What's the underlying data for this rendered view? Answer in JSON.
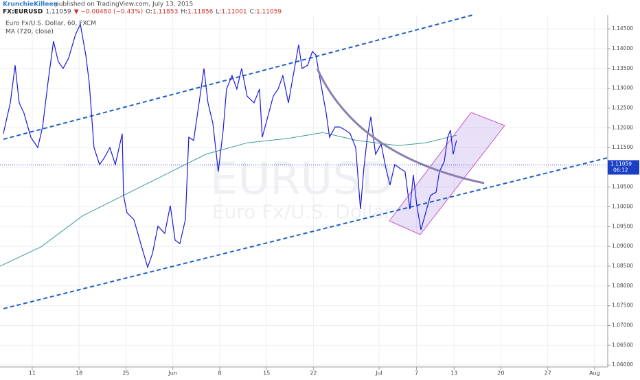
{
  "header": {
    "author": "KrunchieKilleen",
    "published": "published on TradingView.com, July 13, 2015",
    "symbol": "FX:EURUSD",
    "price": "1.11059",
    "change": "▼ −0.00480 (−0.43%)",
    "ohlc": [
      {
        "key": "O:",
        "val": "1.11853"
      },
      {
        "key": "H:",
        "val": "1.11856"
      },
      {
        "key": "L:",
        "val": "1.11001"
      },
      {
        "key": "C:",
        "val": "1.11059"
      }
    ]
  },
  "chart_data": {
    "type": "line",
    "watermark": "EURUSD",
    "watermark_sub": "Euro Fx/U.S. Dollar",
    "series": [
      {
        "name": "Euro Fx/U.S. Dollar, 60, FXCM",
        "color": "#1a1adb",
        "x": [
          -3.08,
          -2.34,
          -1.83,
          -1.39,
          -0.88,
          -0.15,
          0.59,
          1.1,
          1.68,
          2.27,
          2.78,
          3.3,
          3.88,
          4.62,
          5.13,
          5.71,
          6.08,
          6.59,
          7.18,
          7.69,
          8.28,
          8.86,
          9.6,
          9.74,
          10.11,
          10.84,
          11.58,
          12.31,
          12.82,
          13.41,
          14.14,
          14.73,
          15.24,
          15.75,
          16.34,
          16.7,
          17.22,
          17.8,
          18.32,
          18.75,
          19.27,
          19.85,
          20.37,
          20.73,
          21.32,
          21.83,
          22.34,
          22.93,
          23.66,
          24.25,
          24.54,
          25.13,
          25.71,
          26.23,
          26.74,
          27.33,
          27.91,
          28.42,
          28.79,
          29.38,
          29.89,
          30.26,
          30.77,
          31.36,
          31.72,
          32.31,
          32.82,
          33.41,
          33.92,
          34.51,
          35.02,
          35.38,
          35.75,
          36.12,
          36.63,
          37.22,
          37.73,
          38.17,
          38.68,
          39.19,
          39.78,
          40.29,
          40.66,
          41.03,
          41.47,
          41.98,
          42.49,
          43.08,
          43.44,
          43.96,
          44.32,
          44.62,
          44.91,
          45.27
        ],
        "values": [
          1.1185,
          1.1263,
          1.1358,
          1.1263,
          1.1237,
          1.1176,
          1.115,
          1.1202,
          1.1315,
          1.1419,
          1.1367,
          1.135,
          1.1376,
          1.1436,
          1.1462,
          1.1384,
          1.1315,
          1.115,
          1.1107,
          1.1124,
          1.115,
          1.1107,
          1.1185,
          1.1029,
          1.0985,
          1.0968,
          1.0907,
          1.0847,
          1.0881,
          1.0951,
          1.0933,
          1.1003,
          1.0916,
          1.0907,
          1.0968,
          1.1176,
          1.1168,
          1.1263,
          1.135,
          1.1263,
          1.1211,
          1.1089,
          1.1194,
          1.1298,
          1.1332,
          1.1298,
          1.135,
          1.128,
          1.1263,
          1.1298,
          1.1176,
          1.1228,
          1.128,
          1.1298,
          1.1332,
          1.1263,
          1.1341,
          1.141,
          1.135,
          1.1358,
          1.1393,
          1.1384,
          1.1315,
          1.1237,
          1.1176,
          1.1202,
          1.1202,
          1.1194,
          1.1185,
          1.115,
          1.0994,
          1.1098,
          1.1176,
          1.1228,
          1.1133,
          1.1159,
          1.1098,
          1.1055,
          1.1107,
          1.1098,
          1.1089,
          1.0994,
          1.1081,
          1.1003,
          1.0942,
          1.0985,
          1.1029,
          1.1037,
          1.1089,
          1.1115,
          1.1176,
          1.1194,
          1.1133,
          1.1168
        ]
      },
      {
        "name": "MA (720, close)",
        "color": "#3c9a9a",
        "x": [
          -3.44,
          0.95,
          5.35,
          9.74,
          14.14,
          18.53,
          22.93,
          27.33,
          30.99,
          34.65,
          39.05,
          41.98,
          45.27
        ],
        "values": [
          1.085,
          1.0899,
          1.0977,
          1.1029,
          1.1081,
          1.1133,
          1.1162,
          1.1173,
          1.1188,
          1.1168,
          1.1155,
          1.1162,
          1.1181
        ]
      }
    ],
    "last_price": 1.11059,
    "countdown": "06:12",
    "xlim": [
      -3.44,
      61.4
    ],
    "xticks": [
      {
        "value": 0,
        "label": "11"
      },
      {
        "value": 5,
        "label": "18"
      },
      {
        "value": 10,
        "label": "25"
      },
      {
        "value": 15,
        "label": "Jun"
      },
      {
        "value": 20,
        "label": "8"
      },
      {
        "value": 25,
        "label": "15"
      },
      {
        "value": 30,
        "label": "22"
      },
      {
        "value": 37,
        "label": "Jul"
      },
      {
        "value": 41,
        "label": "7"
      },
      {
        "value": 45,
        "label": "13"
      },
      {
        "value": 50,
        "label": "20"
      },
      {
        "value": 55,
        "label": "27"
      },
      {
        "value": 60,
        "label": "Aug"
      }
    ],
    "ylim": [
      1.0595,
      1.1485
    ],
    "yticks": [
      {
        "value": 1.06,
        "label": "1.06000"
      },
      {
        "value": 1.065,
        "label": "1.06500"
      },
      {
        "value": 1.07,
        "label": "1.07000"
      },
      {
        "value": 1.075,
        "label": "1.07500"
      },
      {
        "value": 1.08,
        "label": "1.08000"
      },
      {
        "value": 1.085,
        "label": "1.08500"
      },
      {
        "value": 1.09,
        "label": "1.09000"
      },
      {
        "value": 1.095,
        "label": "1.09500"
      },
      {
        "value": 1.1,
        "label": "1.10000"
      },
      {
        "value": 1.105,
        "label": "1.10500"
      },
      {
        "value": 1.11,
        "label": "1.11000"
      },
      {
        "value": 1.115,
        "label": "1.11500"
      },
      {
        "value": 1.12,
        "label": "1.12000"
      },
      {
        "value": 1.125,
        "label": "1.12500"
      },
      {
        "value": 1.13,
        "label": "1.13000"
      },
      {
        "value": 1.135,
        "label": "1.13500"
      },
      {
        "value": 1.14,
        "label": "1.14000"
      },
      {
        "value": 1.145,
        "label": "1.14500"
      }
    ],
    "grid": true
  }
}
